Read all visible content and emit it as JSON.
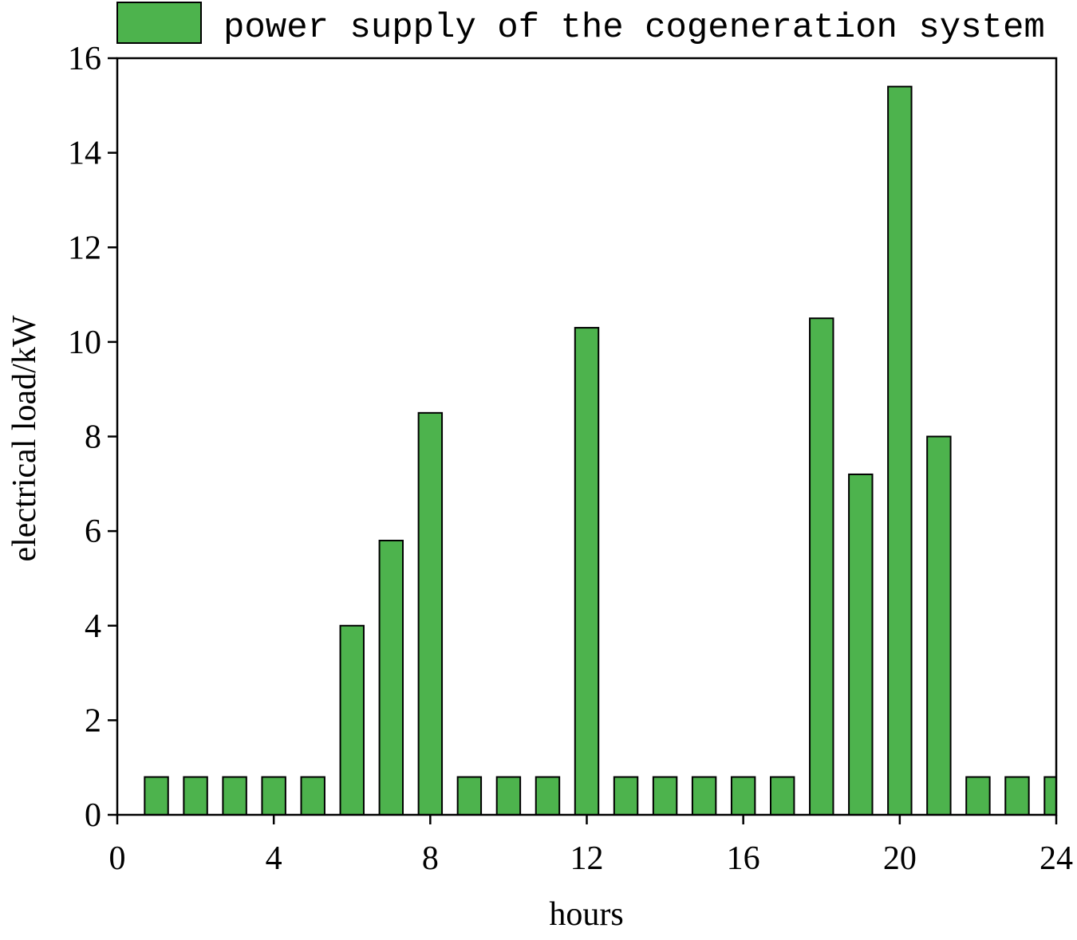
{
  "chart_data": {
    "type": "bar",
    "x_label": "hours",
    "y_label": "electrical load/kW",
    "x": [
      1,
      2,
      3,
      4,
      5,
      6,
      7,
      8,
      9,
      10,
      11,
      12,
      13,
      14,
      15,
      16,
      17,
      18,
      19,
      20,
      21,
      22,
      23,
      24
    ],
    "series": [
      {
        "name": "power supply of the cogeneration system",
        "color": "#4db34d",
        "values": [
          0.8,
          0.8,
          0.8,
          0.8,
          0.8,
          4,
          5.8,
          8.5,
          0.8,
          0.8,
          0.8,
          10.3,
          0.8,
          0.8,
          0.8,
          0.8,
          0.8,
          10.5,
          7.2,
          15.4,
          8,
          0.8,
          0.8,
          0.8
        ]
      }
    ],
    "xlim": [
      0,
      24
    ],
    "xticks": [
      0,
      4,
      8,
      12,
      16,
      20,
      24
    ],
    "ylim": [
      0,
      16
    ],
    "yticks": [
      0,
      2,
      4,
      6,
      8,
      10,
      12,
      14,
      16
    ],
    "legend": "top"
  }
}
